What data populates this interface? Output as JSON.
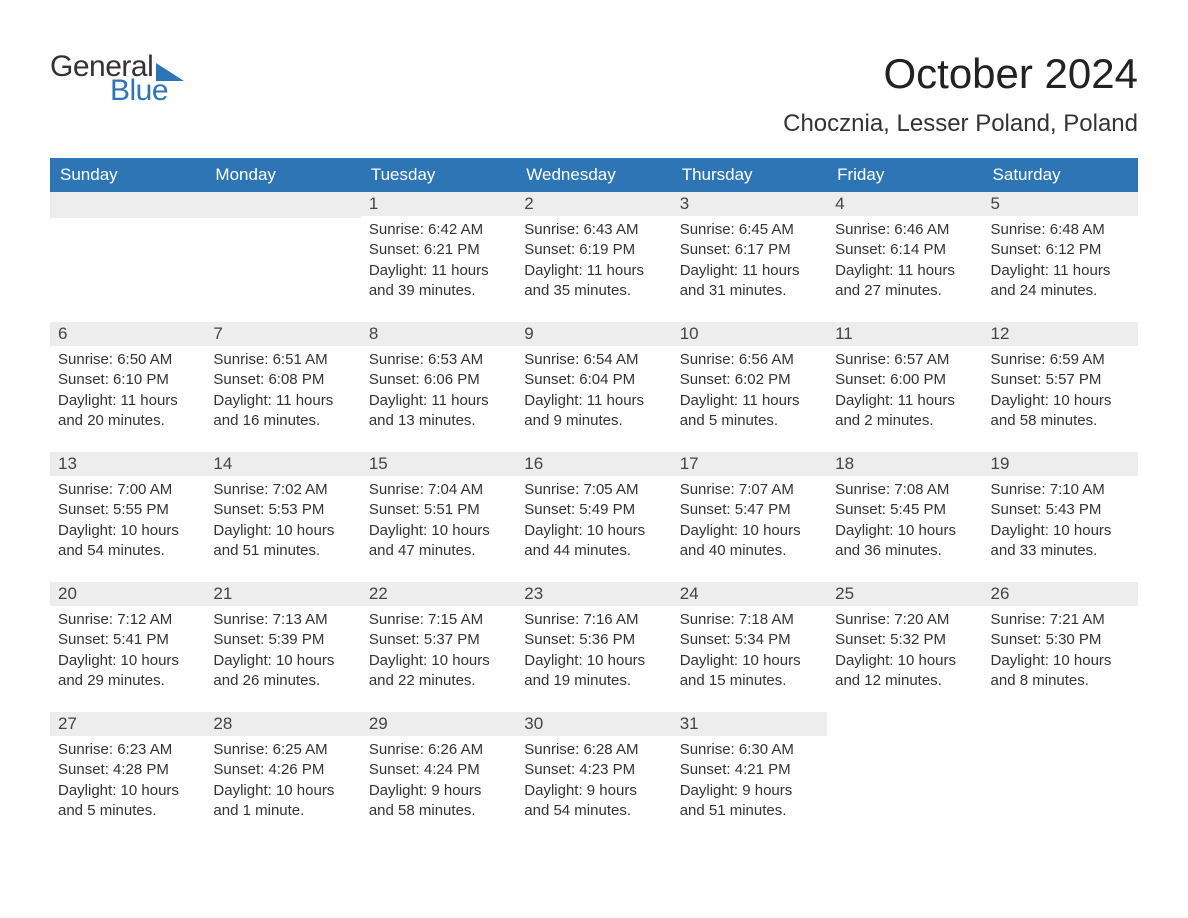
{
  "logo": {
    "part1": "General",
    "part2": "Blue"
  },
  "title": "October 2024",
  "location": "Chocznia, Lesser Poland, Poland",
  "colors": {
    "header_bg": "#2e75b6",
    "header_fg": "#ffffff",
    "daynum_bg": "#ededed",
    "border": "#2e75b6",
    "text": "#333333",
    "background": "#ffffff"
  },
  "fonts": {
    "title_size_pt": 32,
    "location_size_pt": 18,
    "dayhead_size_pt": 13,
    "body_size_pt": 11
  },
  "weekdays": [
    "Sunday",
    "Monday",
    "Tuesday",
    "Wednesday",
    "Thursday",
    "Friday",
    "Saturday"
  ],
  "weeks": [
    [
      null,
      null,
      {
        "n": "1",
        "sunrise": "Sunrise: 6:42 AM",
        "sunset": "Sunset: 6:21 PM",
        "daylight": "Daylight: 11 hours and 39 minutes."
      },
      {
        "n": "2",
        "sunrise": "Sunrise: 6:43 AM",
        "sunset": "Sunset: 6:19 PM",
        "daylight": "Daylight: 11 hours and 35 minutes."
      },
      {
        "n": "3",
        "sunrise": "Sunrise: 6:45 AM",
        "sunset": "Sunset: 6:17 PM",
        "daylight": "Daylight: 11 hours and 31 minutes."
      },
      {
        "n": "4",
        "sunrise": "Sunrise: 6:46 AM",
        "sunset": "Sunset: 6:14 PM",
        "daylight": "Daylight: 11 hours and 27 minutes."
      },
      {
        "n": "5",
        "sunrise": "Sunrise: 6:48 AM",
        "sunset": "Sunset: 6:12 PM",
        "daylight": "Daylight: 11 hours and 24 minutes."
      }
    ],
    [
      {
        "n": "6",
        "sunrise": "Sunrise: 6:50 AM",
        "sunset": "Sunset: 6:10 PM",
        "daylight": "Daylight: 11 hours and 20 minutes."
      },
      {
        "n": "7",
        "sunrise": "Sunrise: 6:51 AM",
        "sunset": "Sunset: 6:08 PM",
        "daylight": "Daylight: 11 hours and 16 minutes."
      },
      {
        "n": "8",
        "sunrise": "Sunrise: 6:53 AM",
        "sunset": "Sunset: 6:06 PM",
        "daylight": "Daylight: 11 hours and 13 minutes."
      },
      {
        "n": "9",
        "sunrise": "Sunrise: 6:54 AM",
        "sunset": "Sunset: 6:04 PM",
        "daylight": "Daylight: 11 hours and 9 minutes."
      },
      {
        "n": "10",
        "sunrise": "Sunrise: 6:56 AM",
        "sunset": "Sunset: 6:02 PM",
        "daylight": "Daylight: 11 hours and 5 minutes."
      },
      {
        "n": "11",
        "sunrise": "Sunrise: 6:57 AM",
        "sunset": "Sunset: 6:00 PM",
        "daylight": "Daylight: 11 hours and 2 minutes."
      },
      {
        "n": "12",
        "sunrise": "Sunrise: 6:59 AM",
        "sunset": "Sunset: 5:57 PM",
        "daylight": "Daylight: 10 hours and 58 minutes."
      }
    ],
    [
      {
        "n": "13",
        "sunrise": "Sunrise: 7:00 AM",
        "sunset": "Sunset: 5:55 PM",
        "daylight": "Daylight: 10 hours and 54 minutes."
      },
      {
        "n": "14",
        "sunrise": "Sunrise: 7:02 AM",
        "sunset": "Sunset: 5:53 PM",
        "daylight": "Daylight: 10 hours and 51 minutes."
      },
      {
        "n": "15",
        "sunrise": "Sunrise: 7:04 AM",
        "sunset": "Sunset: 5:51 PM",
        "daylight": "Daylight: 10 hours and 47 minutes."
      },
      {
        "n": "16",
        "sunrise": "Sunrise: 7:05 AM",
        "sunset": "Sunset: 5:49 PM",
        "daylight": "Daylight: 10 hours and 44 minutes."
      },
      {
        "n": "17",
        "sunrise": "Sunrise: 7:07 AM",
        "sunset": "Sunset: 5:47 PM",
        "daylight": "Daylight: 10 hours and 40 minutes."
      },
      {
        "n": "18",
        "sunrise": "Sunrise: 7:08 AM",
        "sunset": "Sunset: 5:45 PM",
        "daylight": "Daylight: 10 hours and 36 minutes."
      },
      {
        "n": "19",
        "sunrise": "Sunrise: 7:10 AM",
        "sunset": "Sunset: 5:43 PM",
        "daylight": "Daylight: 10 hours and 33 minutes."
      }
    ],
    [
      {
        "n": "20",
        "sunrise": "Sunrise: 7:12 AM",
        "sunset": "Sunset: 5:41 PM",
        "daylight": "Daylight: 10 hours and 29 minutes."
      },
      {
        "n": "21",
        "sunrise": "Sunrise: 7:13 AM",
        "sunset": "Sunset: 5:39 PM",
        "daylight": "Daylight: 10 hours and 26 minutes."
      },
      {
        "n": "22",
        "sunrise": "Sunrise: 7:15 AM",
        "sunset": "Sunset: 5:37 PM",
        "daylight": "Daylight: 10 hours and 22 minutes."
      },
      {
        "n": "23",
        "sunrise": "Sunrise: 7:16 AM",
        "sunset": "Sunset: 5:36 PM",
        "daylight": "Daylight: 10 hours and 19 minutes."
      },
      {
        "n": "24",
        "sunrise": "Sunrise: 7:18 AM",
        "sunset": "Sunset: 5:34 PM",
        "daylight": "Daylight: 10 hours and 15 minutes."
      },
      {
        "n": "25",
        "sunrise": "Sunrise: 7:20 AM",
        "sunset": "Sunset: 5:32 PM",
        "daylight": "Daylight: 10 hours and 12 minutes."
      },
      {
        "n": "26",
        "sunrise": "Sunrise: 7:21 AM",
        "sunset": "Sunset: 5:30 PM",
        "daylight": "Daylight: 10 hours and 8 minutes."
      }
    ],
    [
      {
        "n": "27",
        "sunrise": "Sunrise: 6:23 AM",
        "sunset": "Sunset: 4:28 PM",
        "daylight": "Daylight: 10 hours and 5 minutes."
      },
      {
        "n": "28",
        "sunrise": "Sunrise: 6:25 AM",
        "sunset": "Sunset: 4:26 PM",
        "daylight": "Daylight: 10 hours and 1 minute."
      },
      {
        "n": "29",
        "sunrise": "Sunrise: 6:26 AM",
        "sunset": "Sunset: 4:24 PM",
        "daylight": "Daylight: 9 hours and 58 minutes."
      },
      {
        "n": "30",
        "sunrise": "Sunrise: 6:28 AM",
        "sunset": "Sunset: 4:23 PM",
        "daylight": "Daylight: 9 hours and 54 minutes."
      },
      {
        "n": "31",
        "sunrise": "Sunrise: 6:30 AM",
        "sunset": "Sunset: 4:21 PM",
        "daylight": "Daylight: 9 hours and 51 minutes."
      },
      null,
      null
    ]
  ]
}
